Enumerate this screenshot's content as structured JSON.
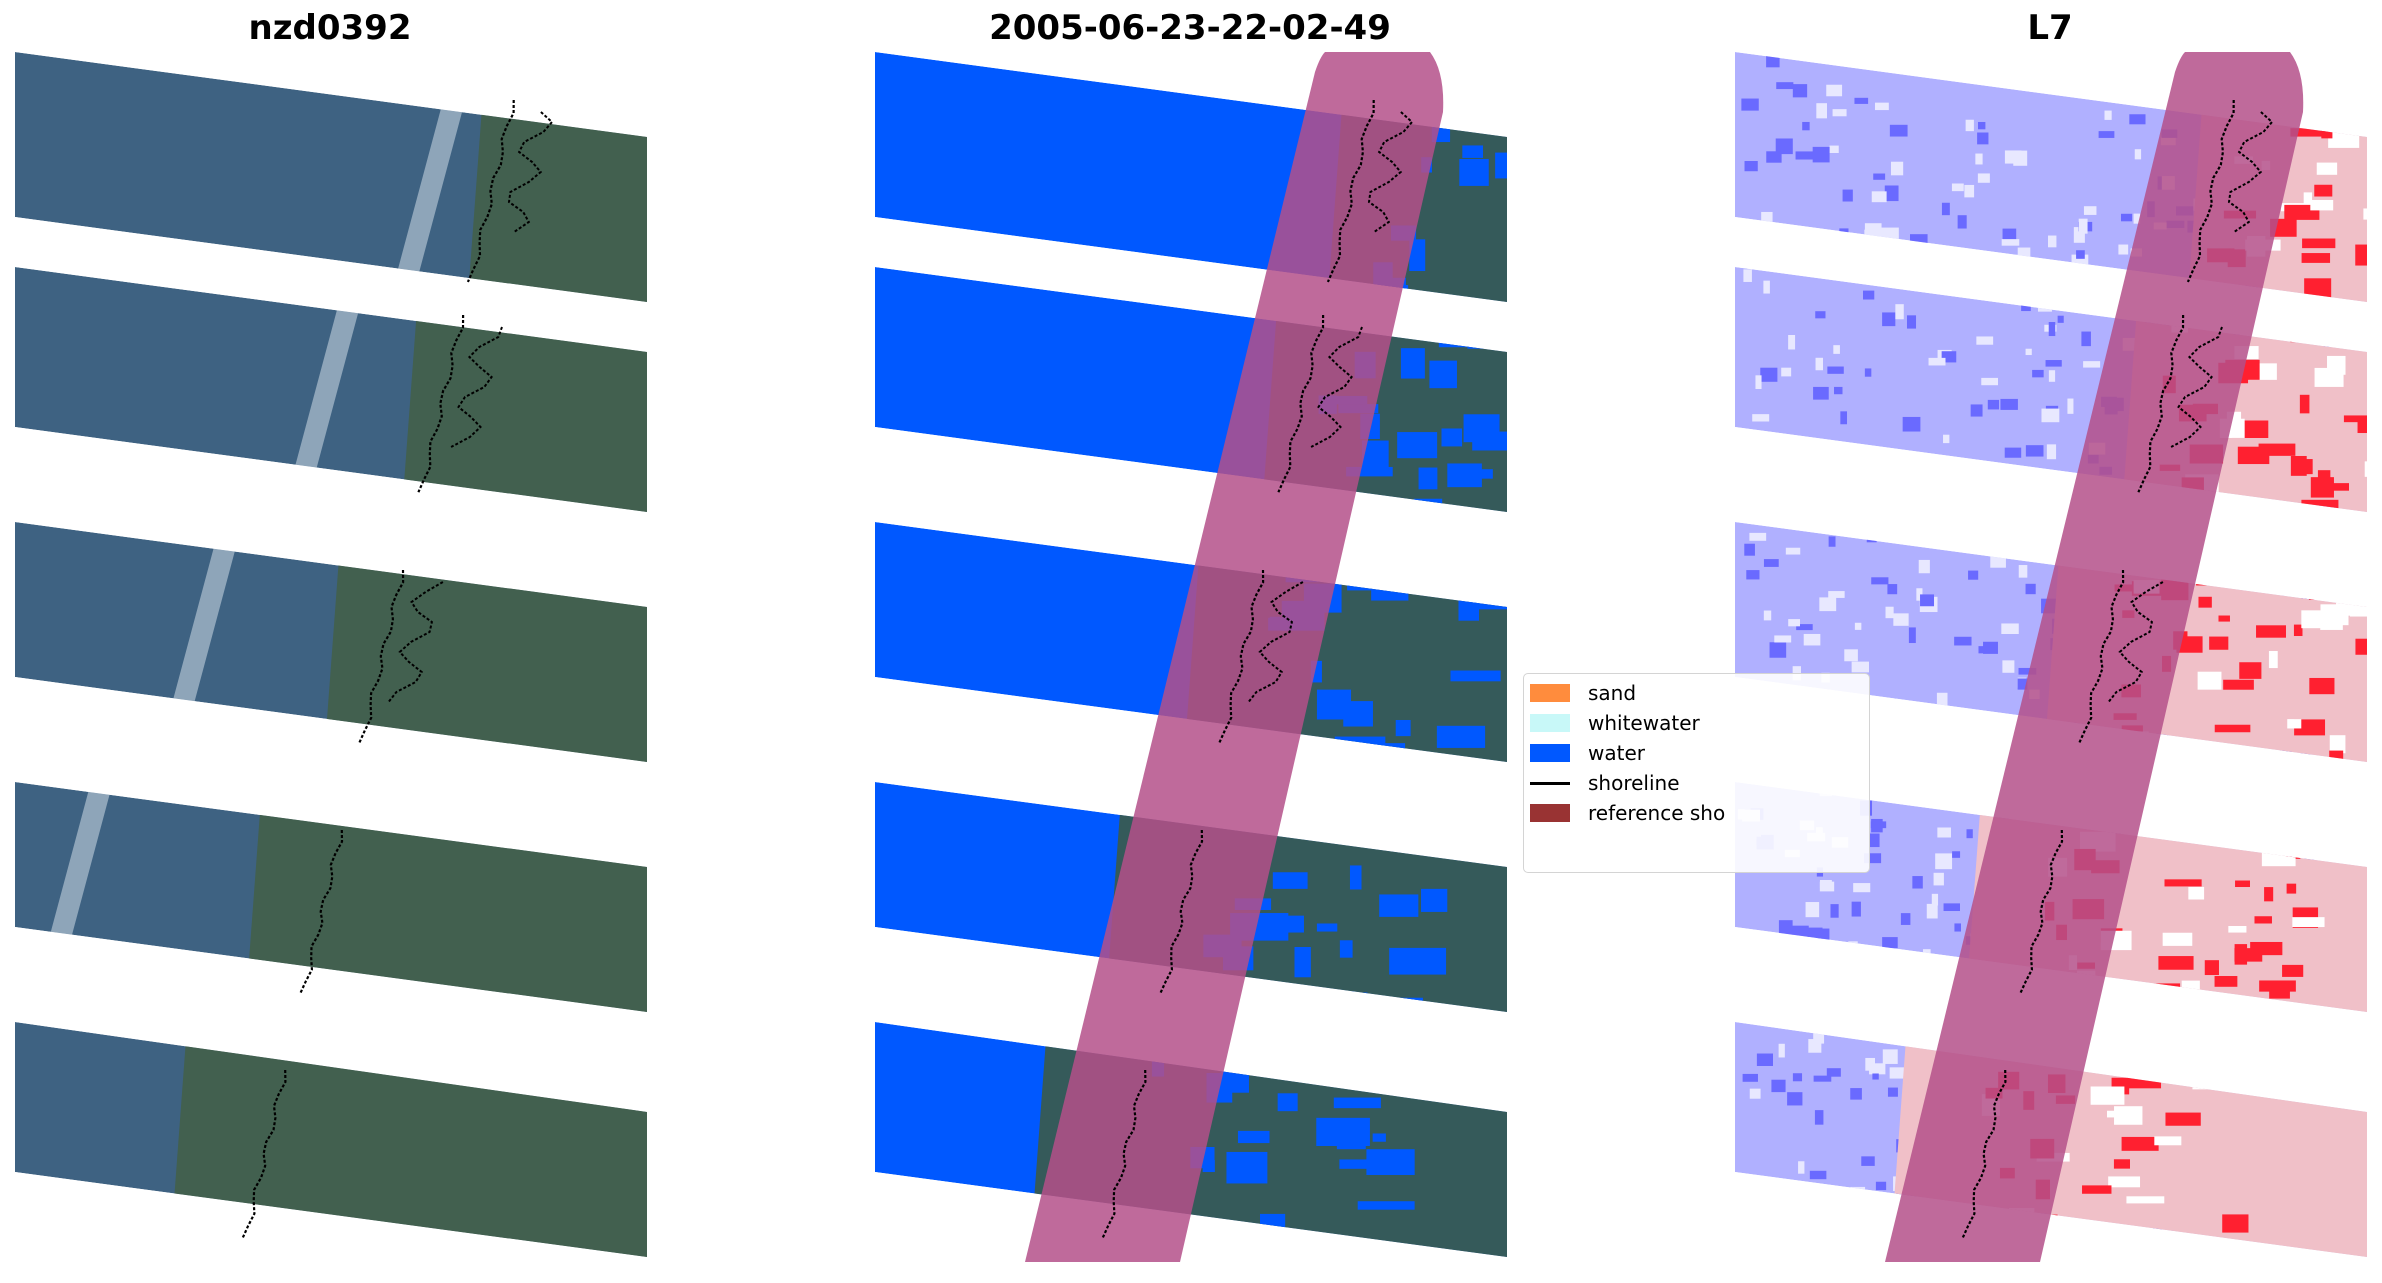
{
  "panels": [
    {
      "id": "rgb",
      "title": "nzd0392"
    },
    {
      "id": "classification",
      "title": "2005-06-23-22-02-49"
    },
    {
      "id": "index",
      "title": "L7"
    }
  ],
  "legend": {
    "items": [
      {
        "label": "sand",
        "color": "#ff8c3d"
      },
      {
        "label": "whitewater",
        "color": "#c8f8f8"
      },
      {
        "label": "water",
        "color": "#0058ff"
      },
      {
        "label": "shoreline",
        "color": "#000000"
      },
      {
        "label": "reference sho",
        "color": "#993333"
      }
    ]
  },
  "colors": {
    "sea": "#3e6282",
    "land": "#42604f",
    "water_class": "#0058ff",
    "buffer": "#b4508a",
    "index_low": "#8080ff",
    "index_high": "#ff2030"
  }
}
